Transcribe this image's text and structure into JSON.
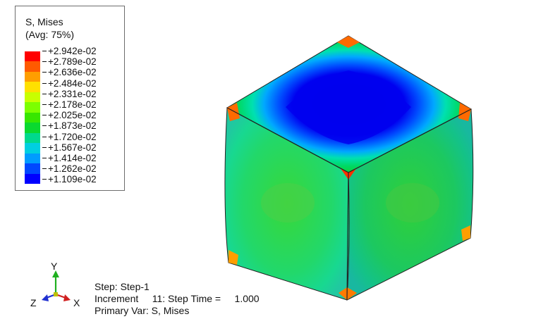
{
  "legend": {
    "title_line1": "S, Mises",
    "title_line2": "(Avg: 75%)",
    "labels": [
      "+2.942e-02",
      "+2.789e-02",
      "+2.636e-02",
      "+2.484e-02",
      "+2.331e-02",
      "+2.178e-02",
      "+2.025e-02",
      "+1.873e-02",
      "+1.720e-02",
      "+1.567e-02",
      "+1.414e-02",
      "+1.262e-02",
      "+1.109e-02"
    ],
    "colors": [
      "#ff0000",
      "#ff5a00",
      "#ff9e00",
      "#ffe000",
      "#c8ff00",
      "#7cff00",
      "#37e600",
      "#0ad92f",
      "#00d98c",
      "#00cfe0",
      "#009cff",
      "#0048ff",
      "#0000ff"
    ]
  },
  "triad": {
    "y_label": "Y",
    "x_label": "X",
    "z_label": "Z"
  },
  "step_info": {
    "line1": "Step: Step-1",
    "line2": "Increment     11: Step Time =     1.000",
    "line3": "Primary Var: S, Mises"
  }
}
